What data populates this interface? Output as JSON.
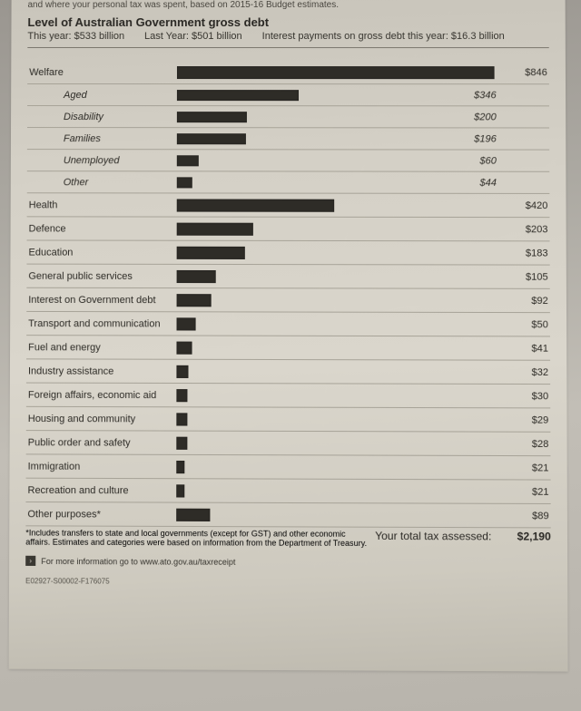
{
  "crop_line": "and where your personal tax was spent, based on 2015-16 Budget estimates.",
  "header": {
    "title": "Level of Australian Government gross debt",
    "this_year": "This year: $533 billion",
    "last_year": "Last Year: $501 billion",
    "interest": "Interest payments on gross debt this year: $16.3 billion"
  },
  "chart": {
    "max_value": 846,
    "bar_color": "#2e2c27",
    "rows": [
      {
        "label": "Welfare",
        "value": 846,
        "display": "$846",
        "sub": false
      },
      {
        "label": "Aged",
        "value": 346,
        "display": "$346",
        "sub": true
      },
      {
        "label": "Disability",
        "value": 200,
        "display": "$200",
        "sub": true
      },
      {
        "label": "Families",
        "value": 196,
        "display": "$196",
        "sub": true
      },
      {
        "label": "Unemployed",
        "value": 60,
        "display": "$60",
        "sub": true
      },
      {
        "label": "Other",
        "value": 44,
        "display": "$44",
        "sub": true
      },
      {
        "label": "Health",
        "value": 420,
        "display": "$420",
        "sub": false
      },
      {
        "label": "Defence",
        "value": 203,
        "display": "$203",
        "sub": false
      },
      {
        "label": "Education",
        "value": 183,
        "display": "$183",
        "sub": false
      },
      {
        "label": "General public services",
        "value": 105,
        "display": "$105",
        "sub": false
      },
      {
        "label": "Interest on Government debt",
        "value": 92,
        "display": "$92",
        "sub": false
      },
      {
        "label": "Transport and communication",
        "value": 50,
        "display": "$50",
        "sub": false
      },
      {
        "label": "Fuel and energy",
        "value": 41,
        "display": "$41",
        "sub": false
      },
      {
        "label": "Industry assistance",
        "value": 32,
        "display": "$32",
        "sub": false
      },
      {
        "label": "Foreign affairs, economic aid",
        "value": 30,
        "display": "$30",
        "sub": false
      },
      {
        "label": "Housing and community",
        "value": 29,
        "display": "$29",
        "sub": false
      },
      {
        "label": "Public order and safety",
        "value": 28,
        "display": "$28",
        "sub": false
      },
      {
        "label": "Immigration",
        "value": 21,
        "display": "$21",
        "sub": false
      },
      {
        "label": "Recreation and culture",
        "value": 21,
        "display": "$21",
        "sub": false
      },
      {
        "label": "Other purposes*",
        "value": 89,
        "display": "$89",
        "sub": false
      }
    ]
  },
  "footnote": "*Includes transfers to state and local governments (except for GST) and other economic affairs. Estimates and categories were based on information from the Department of Treasury.",
  "total": {
    "label": "Your total tax assessed:",
    "value": "$2,190"
  },
  "more_info": "For more information go to www.ato.gov.au/taxreceipt",
  "refcode": "E02927-S00002-F176075"
}
